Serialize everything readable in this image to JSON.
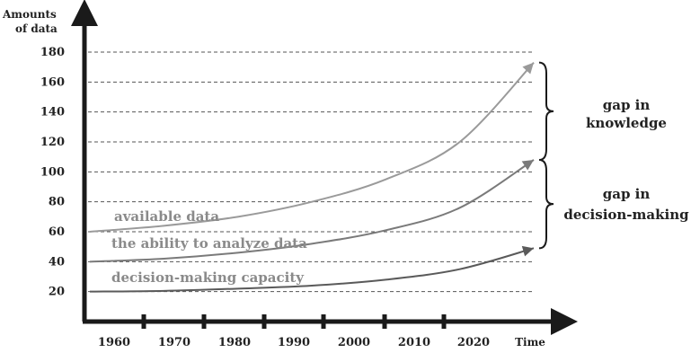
{
  "chart_data": {
    "type": "line",
    "title": "",
    "ylabel_lines": [
      "Amounts",
      "of data"
    ],
    "xlabel": "Time",
    "x_ticks": [
      "1960",
      "1970",
      "1980",
      "1990",
      "2000",
      "2010",
      "2020"
    ],
    "y_ticks": [
      20,
      40,
      60,
      80,
      100,
      120,
      140,
      160,
      180
    ],
    "ylim": [
      0,
      180
    ],
    "xlim": [
      1955,
      2025
    ],
    "grid": "horizontal-dashed",
    "series": [
      {
        "name": "available data",
        "color": "#9a9a9a",
        "x": [
          1960,
          1970,
          1980,
          1990,
          2000,
          2010,
          2020
        ],
        "values": [
          60,
          64,
          70,
          80,
          95,
          120,
          173
        ]
      },
      {
        "name": "the ability to analyze data",
        "color": "#7a7a7a",
        "x": [
          1960,
          1970,
          1980,
          1990,
          2000,
          2010,
          2020
        ],
        "values": [
          40,
          42,
          46,
          52,
          61,
          76,
          108
        ]
      },
      {
        "name": "decision-making capacity",
        "color": "#5a5a5a",
        "x": [
          1960,
          1970,
          1980,
          1990,
          2000,
          2010,
          2020
        ],
        "values": [
          20,
          20.5,
          22,
          24,
          28,
          35,
          49
        ]
      }
    ],
    "annotations": [
      {
        "label_lines": [
          "gap in",
          "knowledge"
        ]
      },
      {
        "label_lines": [
          "gap in",
          "decision-making"
        ]
      }
    ]
  },
  "colors": {
    "axis": "#1a1a1a",
    "grid": "#555555",
    "text": "#222222"
  }
}
